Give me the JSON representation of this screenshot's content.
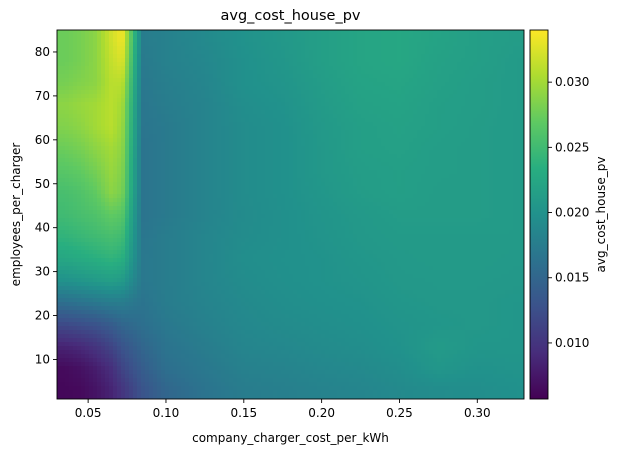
{
  "chart_data": {
    "type": "heatmap",
    "title": "avg_cost_house_pv",
    "xlabel": "company_charger_cost_per_kWh",
    "ylabel": "employees_per_charger",
    "xlim": [
      0.03,
      0.33
    ],
    "ylim": [
      1,
      85
    ],
    "xticks": [
      0.05,
      0.1,
      0.15,
      0.2,
      0.25,
      0.3
    ],
    "xtick_labels": [
      "0.05",
      "0.10",
      "0.15",
      "0.20",
      "0.25",
      "0.30"
    ],
    "yticks": [
      10,
      20,
      30,
      40,
      50,
      60,
      70,
      80
    ],
    "ytick_labels": [
      "10",
      "20",
      "30",
      "40",
      "50",
      "60",
      "70",
      "80"
    ],
    "colorbar": {
      "label": "avg_cost_house_pv",
      "colormap": "viridis",
      "range": [
        0.0057,
        0.034
      ],
      "ticks": [
        0.01,
        0.015,
        0.02,
        0.025,
        0.03
      ],
      "tick_labels": [
        "0.010",
        "0.015",
        "0.020",
        "0.025",
        "0.030"
      ]
    },
    "x": [
      0.035,
      0.045,
      0.055,
      0.065,
      0.072,
      0.085,
      0.1,
      0.125,
      0.15,
      0.175,
      0.2,
      0.225,
      0.25,
      0.275,
      0.3,
      0.325
    ],
    "y": [
      3,
      8,
      13,
      18,
      23,
      28,
      33,
      38,
      43,
      48,
      53,
      58,
      63,
      68,
      73,
      78,
      83
    ],
    "z": [
      [
        0.0062,
        0.0064,
        0.0072,
        0.0085,
        0.01,
        0.013,
        0.015,
        0.0165,
        0.0175,
        0.0178,
        0.0182,
        0.0185,
        0.019,
        0.0193,
        0.0195,
        0.0198
      ],
      [
        0.0065,
        0.007,
        0.008,
        0.0095,
        0.0115,
        0.014,
        0.016,
        0.017,
        0.018,
        0.0183,
        0.0187,
        0.019,
        0.0195,
        0.0205,
        0.02,
        0.0202
      ],
      [
        0.0085,
        0.009,
        0.01,
        0.0115,
        0.013,
        0.015,
        0.0165,
        0.0175,
        0.0185,
        0.0188,
        0.0192,
        0.0195,
        0.02,
        0.021,
        0.0205,
        0.0205
      ],
      [
        0.012,
        0.0125,
        0.013,
        0.014,
        0.015,
        0.016,
        0.017,
        0.018,
        0.0188,
        0.0192,
        0.0195,
        0.0198,
        0.0202,
        0.0205,
        0.0207,
        0.0205
      ],
      [
        0.016,
        0.0165,
        0.017,
        0.0175,
        0.0175,
        0.0165,
        0.0175,
        0.0183,
        0.019,
        0.0195,
        0.0198,
        0.02,
        0.0205,
        0.0207,
        0.0207,
        0.0205
      ],
      [
        0.02,
        0.0205,
        0.021,
        0.0215,
        0.021,
        0.017,
        0.0175,
        0.0185,
        0.0193,
        0.0197,
        0.02,
        0.0203,
        0.0207,
        0.0208,
        0.0208,
        0.0207
      ],
      [
        0.0225,
        0.023,
        0.0235,
        0.024,
        0.0235,
        0.017,
        0.0175,
        0.0185,
        0.0195,
        0.0198,
        0.02,
        0.0205,
        0.0208,
        0.021,
        0.021,
        0.0208
      ],
      [
        0.024,
        0.0245,
        0.025,
        0.0255,
        0.025,
        0.0168,
        0.0175,
        0.0185,
        0.0193,
        0.0197,
        0.0202,
        0.0207,
        0.021,
        0.021,
        0.021,
        0.021
      ],
      [
        0.025,
        0.0255,
        0.026,
        0.027,
        0.0265,
        0.0165,
        0.0172,
        0.0183,
        0.0192,
        0.0197,
        0.0203,
        0.0208,
        0.0212,
        0.0212,
        0.0212,
        0.021
      ],
      [
        0.0255,
        0.026,
        0.027,
        0.029,
        0.028,
        0.0165,
        0.0172,
        0.0183,
        0.0193,
        0.0198,
        0.0205,
        0.0212,
        0.0215,
        0.0212,
        0.0212,
        0.021
      ],
      [
        0.0265,
        0.027,
        0.028,
        0.0295,
        0.0285,
        0.0165,
        0.0172,
        0.0183,
        0.0193,
        0.0198,
        0.0207,
        0.0213,
        0.0215,
        0.0213,
        0.0212,
        0.021
      ],
      [
        0.0275,
        0.028,
        0.029,
        0.03,
        0.029,
        0.0165,
        0.0172,
        0.0183,
        0.0193,
        0.0198,
        0.0207,
        0.0215,
        0.0217,
        0.0213,
        0.0212,
        0.021
      ],
      [
        0.0285,
        0.029,
        0.03,
        0.031,
        0.0295,
        0.0167,
        0.0172,
        0.0183,
        0.0193,
        0.0198,
        0.0208,
        0.0215,
        0.0218,
        0.0215,
        0.0212,
        0.021
      ],
      [
        0.029,
        0.0295,
        0.03,
        0.031,
        0.03,
        0.0168,
        0.0175,
        0.0183,
        0.0195,
        0.02,
        0.021,
        0.0218,
        0.022,
        0.0215,
        0.0213,
        0.021
      ],
      [
        0.028,
        0.0285,
        0.029,
        0.031,
        0.031,
        0.017,
        0.0177,
        0.0185,
        0.0198,
        0.0203,
        0.0212,
        0.022,
        0.0222,
        0.0217,
        0.0213,
        0.021
      ],
      [
        0.0275,
        0.028,
        0.029,
        0.0315,
        0.0325,
        0.0172,
        0.018,
        0.0187,
        0.0198,
        0.0205,
        0.0215,
        0.0222,
        0.0225,
        0.0218,
        0.0215,
        0.021
      ],
      [
        0.0275,
        0.028,
        0.029,
        0.032,
        0.0335,
        0.0175,
        0.018,
        0.019,
        0.02,
        0.0207,
        0.0215,
        0.0222,
        0.0225,
        0.022,
        0.0215,
        0.0212
      ]
    ]
  }
}
